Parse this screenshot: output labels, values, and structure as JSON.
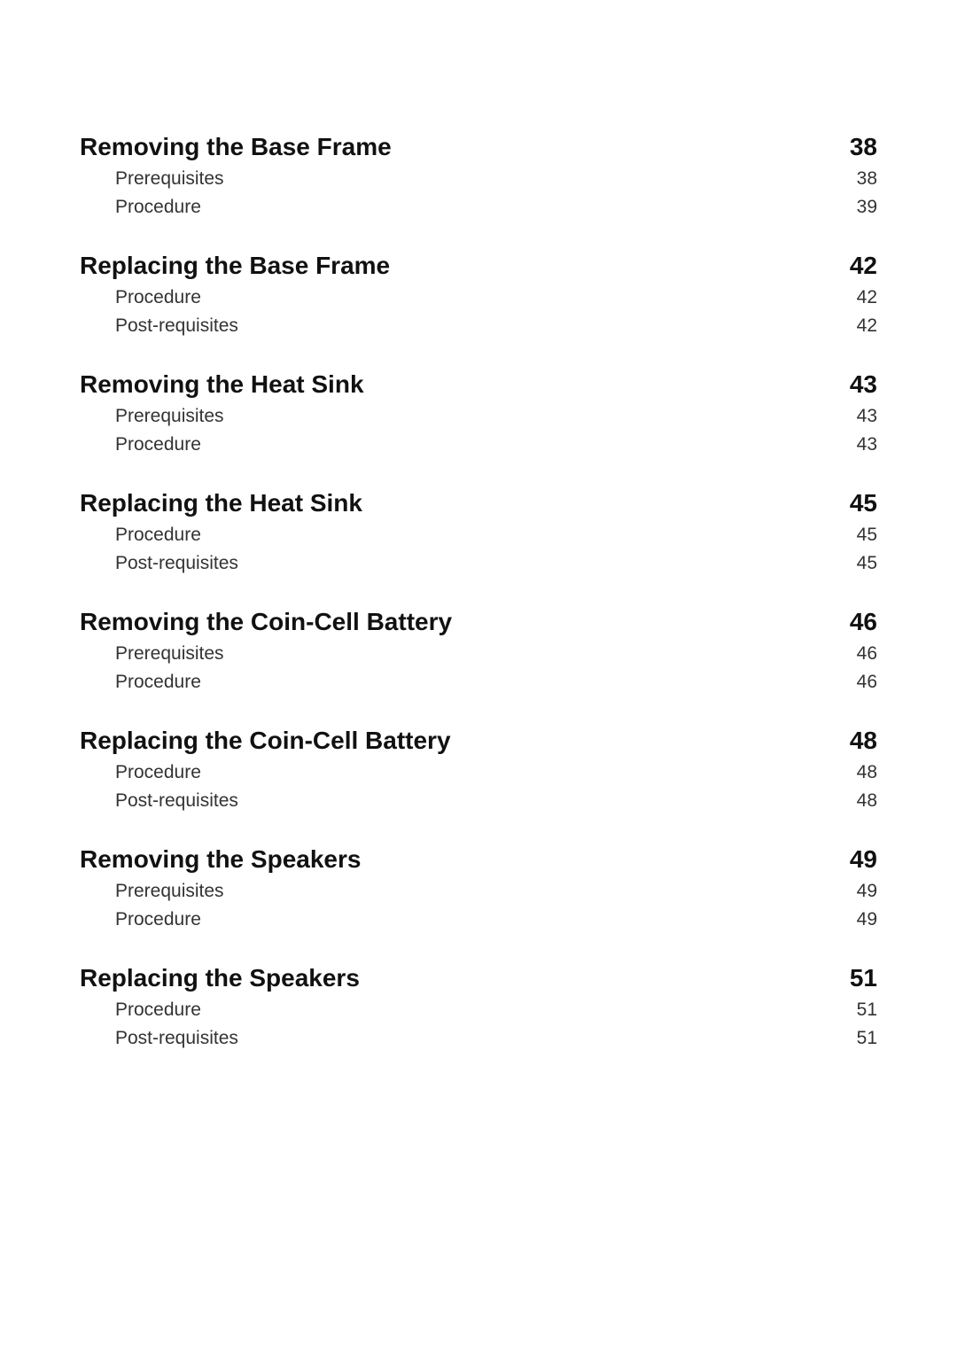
{
  "text_color": "#333333",
  "heading_color": "#111111",
  "background_color": "#ffffff",
  "heading_fontsize_pt": 21,
  "sub_fontsize_pt": 16,
  "sections": [
    {
      "title": "Removing the Base Frame",
      "page": "38",
      "items": [
        {
          "title": "Prerequisites",
          "page": "38"
        },
        {
          "title": "Procedure",
          "page": "39"
        }
      ]
    },
    {
      "title": "Replacing the Base Frame",
      "page": "42",
      "items": [
        {
          "title": "Procedure",
          "page": "42"
        },
        {
          "title": "Post-requisites",
          "page": "42"
        }
      ]
    },
    {
      "title": "Removing the Heat Sink",
      "page": "43",
      "items": [
        {
          "title": "Prerequisites",
          "page": "43"
        },
        {
          "title": "Procedure",
          "page": "43"
        }
      ]
    },
    {
      "title": "Replacing the Heat Sink",
      "page": "45",
      "items": [
        {
          "title": "Procedure",
          "page": "45"
        },
        {
          "title": "Post-requisites",
          "page": "45"
        }
      ]
    },
    {
      "title": "Removing the Coin-Cell Battery",
      "page": "46",
      "items": [
        {
          "title": "Prerequisites",
          "page": "46"
        },
        {
          "title": "Procedure",
          "page": "46"
        }
      ]
    },
    {
      "title": "Replacing the Coin-Cell Battery",
      "page": "48",
      "items": [
        {
          "title": "Procedure",
          "page": "48"
        },
        {
          "title": "Post-requisites",
          "page": "48"
        }
      ]
    },
    {
      "title": "Removing the Speakers",
      "page": "49",
      "items": [
        {
          "title": "Prerequisites",
          "page": "49"
        },
        {
          "title": "Procedure",
          "page": "49"
        }
      ]
    },
    {
      "title": "Replacing the Speakers",
      "page": "51",
      "items": [
        {
          "title": "Procedure",
          "page": "51"
        },
        {
          "title": "Post-requisites",
          "page": "51"
        }
      ]
    }
  ]
}
